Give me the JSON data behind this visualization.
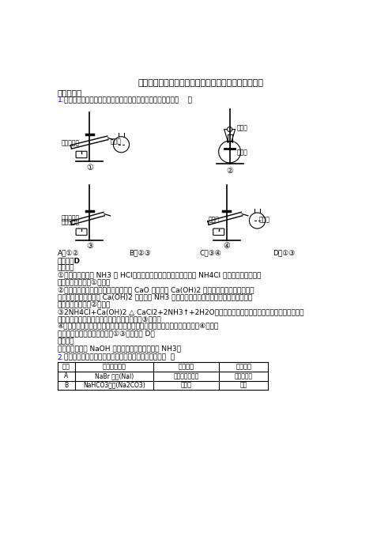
{
  "title": "江苏省宿豫中学高一第二学期第二次质量检测化学试卷",
  "section1": "一、选择题",
  "q1_num": "1.",
  "q1_text": "下面是实验室制取氨气的装置和选用的试剂，其中错误的是（    ）",
  "answer1": "【答案】D",
  "analysis1": "【详解】",
  "detail_lines": [
    "①氯化铵分解产生 NH3 和 HCl，气体在试管口降温后又化合生成 NH4Cl 甚至会堵塞，试管发",
    "生危险，所以方案①错误；",
    "②浓氨水遇到氧化钙后，溶液中的水与 CaO 反应生成 Ca(OH)2 而消耗，反应同时放热使混",
    "合物温度升高，得到的 Ca(OH)2 可以降低 NH3 在水中的溶解度，这些都会促使氨水挥发生",
    "成氨气，因此方案②正确；",
    "③2NH4Cl+Ca(OH)2 △ CaCl2+2NH3↑+2H2O，但是制备装置的试管口要略向下倾斜，防止水",
    "蒸气冷凝回流到试管中使试管炸裂，因此方案③错误；",
    "④浓氨水受热分解生成氨气，通过碱石灰吸收水蒸气后可以得到氨气，方案④正确。",
    "综上所述，不能制取氨气的是①③，应当选 D。"
  ],
  "note1": "【点睛】",
  "note1_text": "与之相似，利用 NaOH 固体或碱石灰也可以制备 NH3。",
  "q2_num": "2.",
  "q2_text": "下列除去括号内的杂质所选的试剂及方法均正确的是（  ）",
  "options_A": "A．①②",
  "options_B": "B．②③",
  "options_C": "C．③④",
  "options_D": "D．①③",
  "img1_label1": "氯化铵固体",
  "img1_label2": "碱石灰",
  "img2_label1": "浓氨水",
  "img2_label2": "氧化钙",
  "img3_label1": "氢氧化钙和",
  "img3_label1b": "氯化铵固体",
  "img4_label1": "浓氨水",
  "img4_label2": "碱石灰",
  "circ1": "①",
  "circ2": "②",
  "circ3": "③",
  "circ4": "④",
  "table_headers": [
    "序号",
    "被提纯的物质",
    "加入试剂",
    "分离方法"
  ],
  "table_row1": [
    "A",
    "NaBr 溶液(NaI)",
    "氯水、四氯化碳",
    "萃取、分液"
  ],
  "table_row2": [
    "B",
    "NaHCO3溶液(Na2CO3)",
    "石灰水",
    "过滤"
  ],
  "bg_color": "#ffffff",
  "text_color": "#000000",
  "blue_color": "#0000cc"
}
